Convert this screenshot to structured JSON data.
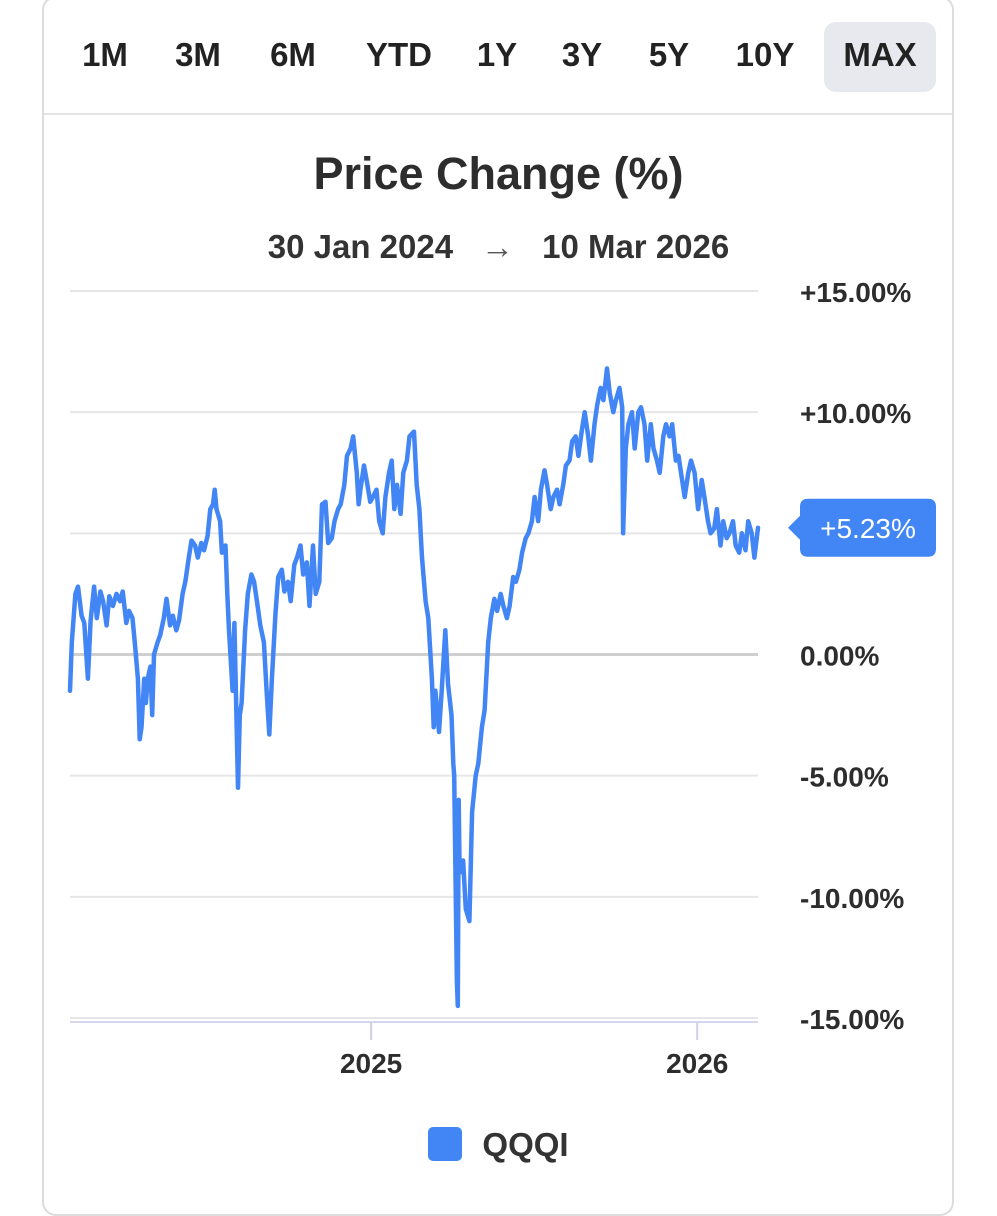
{
  "range_selector": {
    "buttons": [
      {
        "label": "1M"
      },
      {
        "label": "3M"
      },
      {
        "label": "6M"
      },
      {
        "label": "YTD"
      },
      {
        "label": "1Y"
      },
      {
        "label": "3Y"
      },
      {
        "label": "5Y"
      },
      {
        "label": "10Y"
      },
      {
        "label": "MAX"
      }
    ],
    "selected": "MAX"
  },
  "header": {
    "title": "Price Change (%)",
    "start_date": "30 Jan 2024",
    "end_date": "10 Mar 2026",
    "arrow": "→"
  },
  "chart_data": {
    "type": "line",
    "title": "Price Change (%)",
    "xlabel": "",
    "ylabel": "",
    "x_range": [
      "2024-01-30",
      "2026-03-10"
    ],
    "ylim": [
      -15,
      15
    ],
    "y_ticks": [
      15,
      10,
      5,
      0,
      -5,
      -10,
      -15
    ],
    "y_tick_labels": [
      "+15.00%",
      "+10.00%",
      "",
      "0.00%",
      "-5.00%",
      "-10.00%",
      "-15.00%"
    ],
    "x_ticks": [
      {
        "x": "2025-01-01",
        "label": "2025"
      },
      {
        "x": "2026-01-01",
        "label": "2026"
      }
    ],
    "grid": true,
    "legend_position": "bottom",
    "current_value_label": "+5.23%",
    "series": [
      {
        "name": "QQQI",
        "color": "#4285f4",
        "points": [
          [
            "2024-01-30",
            -1.5
          ],
          [
            "2024-02-01",
            0.5
          ],
          [
            "2024-02-05",
            2.5
          ],
          [
            "2024-02-08",
            2.8
          ],
          [
            "2024-02-12",
            1.6
          ],
          [
            "2024-02-15",
            1.3
          ],
          [
            "2024-02-19",
            -1.0
          ],
          [
            "2024-02-22",
            1.4
          ],
          [
            "2024-02-26",
            2.8
          ],
          [
            "2024-02-29",
            1.5
          ],
          [
            "2024-03-04",
            2.6
          ],
          [
            "2024-03-07",
            2.2
          ],
          [
            "2024-03-11",
            1.2
          ],
          [
            "2024-03-14",
            2.4
          ],
          [
            "2024-03-18",
            2.0
          ],
          [
            "2024-03-22",
            2.5
          ],
          [
            "2024-03-26",
            2.2
          ],
          [
            "2024-03-29",
            2.6
          ],
          [
            "2024-04-02",
            1.3
          ],
          [
            "2024-04-05",
            1.8
          ],
          [
            "2024-04-09",
            1.5
          ],
          [
            "2024-04-12",
            0.3
          ],
          [
            "2024-04-15",
            -1.0
          ],
          [
            "2024-04-17",
            -3.5
          ],
          [
            "2024-04-19",
            -3.0
          ],
          [
            "2024-04-22",
            -1.0
          ],
          [
            "2024-04-24",
            -2.0
          ],
          [
            "2024-04-26",
            -1.0
          ],
          [
            "2024-04-29",
            -0.5
          ],
          [
            "2024-05-01",
            -2.5
          ],
          [
            "2024-05-03",
            0.0
          ],
          [
            "2024-05-07",
            0.5
          ],
          [
            "2024-05-10",
            0.8
          ],
          [
            "2024-05-14",
            1.5
          ],
          [
            "2024-05-17",
            2.3
          ],
          [
            "2024-05-21",
            1.2
          ],
          [
            "2024-05-24",
            1.6
          ],
          [
            "2024-05-28",
            1.0
          ],
          [
            "2024-05-31",
            1.4
          ],
          [
            "2024-06-04",
            2.5
          ],
          [
            "2024-06-07",
            3.0
          ],
          [
            "2024-06-11",
            4.0
          ],
          [
            "2024-06-14",
            4.7
          ],
          [
            "2024-06-18",
            4.5
          ],
          [
            "2024-06-21",
            4.0
          ],
          [
            "2024-06-25",
            4.6
          ],
          [
            "2024-06-28",
            4.3
          ],
          [
            "2024-07-02",
            4.9
          ],
          [
            "2024-07-05",
            6.0
          ],
          [
            "2024-07-08",
            6.2
          ],
          [
            "2024-07-10",
            6.8
          ],
          [
            "2024-07-12",
            6.0
          ],
          [
            "2024-07-16",
            5.5
          ],
          [
            "2024-07-18",
            4.2
          ],
          [
            "2024-07-22",
            4.5
          ],
          [
            "2024-07-24",
            2.5
          ],
          [
            "2024-07-26",
            1.0
          ],
          [
            "2024-07-30",
            -1.5
          ],
          [
            "2024-08-01",
            1.3
          ],
          [
            "2024-08-05",
            -5.5
          ],
          [
            "2024-08-07",
            -2.5
          ],
          [
            "2024-08-09",
            -2.0
          ],
          [
            "2024-08-13",
            1.0
          ],
          [
            "2024-08-16",
            2.5
          ],
          [
            "2024-08-20",
            3.3
          ],
          [
            "2024-08-23",
            3.0
          ],
          [
            "2024-08-27",
            2.0
          ],
          [
            "2024-08-30",
            1.2
          ],
          [
            "2024-09-03",
            0.5
          ],
          [
            "2024-09-06",
            -1.5
          ],
          [
            "2024-09-09",
            -3.3
          ],
          [
            "2024-09-12",
            -1.0
          ],
          [
            "2024-09-16",
            1.7
          ],
          [
            "2024-09-19",
            3.2
          ],
          [
            "2024-09-23",
            3.5
          ],
          [
            "2024-09-26",
            2.6
          ],
          [
            "2024-09-30",
            3.0
          ],
          [
            "2024-10-03",
            2.2
          ],
          [
            "2024-10-07",
            3.7
          ],
          [
            "2024-10-10",
            4.0
          ],
          [
            "2024-10-14",
            4.5
          ],
          [
            "2024-10-17",
            3.3
          ],
          [
            "2024-10-21",
            3.8
          ],
          [
            "2024-10-24",
            2.0
          ],
          [
            "2024-10-28",
            4.5
          ],
          [
            "2024-10-31",
            2.5
          ],
          [
            "2024-11-04",
            3.0
          ],
          [
            "2024-11-07",
            6.2
          ],
          [
            "2024-11-11",
            6.3
          ],
          [
            "2024-11-14",
            4.6
          ],
          [
            "2024-11-18",
            4.8
          ],
          [
            "2024-11-21",
            5.5
          ],
          [
            "2024-11-25",
            6.0
          ],
          [
            "2024-11-28",
            6.2
          ],
          [
            "2024-12-02",
            7.0
          ],
          [
            "2024-12-05",
            8.2
          ],
          [
            "2024-12-09",
            8.5
          ],
          [
            "2024-12-12",
            9.0
          ],
          [
            "2024-12-16",
            7.5
          ],
          [
            "2024-12-18",
            6.2
          ],
          [
            "2024-12-20",
            6.8
          ],
          [
            "2024-12-24",
            7.8
          ],
          [
            "2024-12-27",
            7.2
          ],
          [
            "2024-12-31",
            6.3
          ],
          [
            "2025-01-03",
            6.5
          ],
          [
            "2025-01-07",
            6.8
          ],
          [
            "2025-01-10",
            5.5
          ],
          [
            "2025-01-14",
            5.0
          ],
          [
            "2025-01-17",
            6.5
          ],
          [
            "2025-01-21",
            7.5
          ],
          [
            "2025-01-24",
            8.0
          ],
          [
            "2025-01-27",
            6.0
          ],
          [
            "2025-01-30",
            7.0
          ],
          [
            "2025-02-03",
            5.8
          ],
          [
            "2025-02-06",
            7.5
          ],
          [
            "2025-02-10",
            8.0
          ],
          [
            "2025-02-13",
            9.0
          ],
          [
            "2025-02-18",
            9.2
          ],
          [
            "2025-02-21",
            7.0
          ],
          [
            "2025-02-24",
            6.0
          ],
          [
            "2025-02-27",
            4.0
          ],
          [
            "2025-03-03",
            2.2
          ],
          [
            "2025-03-06",
            1.5
          ],
          [
            "2025-03-10",
            -1.0
          ],
          [
            "2025-03-12",
            -3.0
          ],
          [
            "2025-03-14",
            -1.5
          ],
          [
            "2025-03-18",
            -3.2
          ],
          [
            "2025-03-21",
            -1.5
          ],
          [
            "2025-03-25",
            1.0
          ],
          [
            "2025-03-28",
            -1.2
          ],
          [
            "2025-04-01",
            -2.5
          ],
          [
            "2025-04-03",
            -4.5
          ],
          [
            "2025-04-04",
            -5.0
          ],
          [
            "2025-04-07",
            -13.5
          ],
          [
            "2025-04-08",
            -14.5
          ],
          [
            "2025-04-09",
            -6.0
          ],
          [
            "2025-04-10",
            -9.0
          ],
          [
            "2025-04-14",
            -8.5
          ],
          [
            "2025-04-17",
            -10.5
          ],
          [
            "2025-04-21",
            -11.0
          ],
          [
            "2025-04-24",
            -6.5
          ],
          [
            "2025-04-28",
            -5.0
          ],
          [
            "2025-05-01",
            -4.5
          ],
          [
            "2025-05-05",
            -3.0
          ],
          [
            "2025-05-08",
            -2.3
          ],
          [
            "2025-05-12",
            0.5
          ],
          [
            "2025-05-15",
            1.5
          ],
          [
            "2025-05-19",
            2.3
          ],
          [
            "2025-05-22",
            1.8
          ],
          [
            "2025-05-26",
            2.5
          ],
          [
            "2025-05-29",
            2.0
          ],
          [
            "2025-06-02",
            1.5
          ],
          [
            "2025-06-05",
            2.0
          ],
          [
            "2025-06-09",
            3.2
          ],
          [
            "2025-06-12",
            3.0
          ],
          [
            "2025-06-16",
            3.5
          ],
          [
            "2025-06-19",
            4.2
          ],
          [
            "2025-06-23",
            4.8
          ],
          [
            "2025-06-26",
            5.0
          ],
          [
            "2025-06-30",
            5.5
          ],
          [
            "2025-07-03",
            6.5
          ],
          [
            "2025-07-07",
            5.5
          ],
          [
            "2025-07-10",
            6.8
          ],
          [
            "2025-07-14",
            7.6
          ],
          [
            "2025-07-17",
            7.0
          ],
          [
            "2025-07-21",
            6.0
          ],
          [
            "2025-07-24",
            6.5
          ],
          [
            "2025-07-28",
            6.8
          ],
          [
            "2025-07-31",
            6.2
          ],
          [
            "2025-08-04",
            7.0
          ],
          [
            "2025-08-07",
            7.8
          ],
          [
            "2025-08-11",
            8.0
          ],
          [
            "2025-08-14",
            8.8
          ],
          [
            "2025-08-18",
            9.0
          ],
          [
            "2025-08-21",
            8.2
          ],
          [
            "2025-08-25",
            9.3
          ],
          [
            "2025-08-28",
            10.0
          ],
          [
            "2025-09-01",
            9.0
          ],
          [
            "2025-09-04",
            8.0
          ],
          [
            "2025-09-08",
            9.5
          ],
          [
            "2025-09-11",
            10.3
          ],
          [
            "2025-09-15",
            11.0
          ],
          [
            "2025-09-18",
            10.5
          ],
          [
            "2025-09-22",
            11.8
          ],
          [
            "2025-09-25",
            10.8
          ],
          [
            "2025-09-29",
            10.0
          ],
          [
            "2025-10-02",
            10.5
          ],
          [
            "2025-10-06",
            11.0
          ],
          [
            "2025-10-09",
            10.2
          ],
          [
            "2025-10-10",
            5.0
          ],
          [
            "2025-10-13",
            8.5
          ],
          [
            "2025-10-16",
            9.5
          ],
          [
            "2025-10-20",
            10.0
          ],
          [
            "2025-10-23",
            8.5
          ],
          [
            "2025-10-27",
            10.0
          ],
          [
            "2025-10-30",
            10.2
          ],
          [
            "2025-11-03",
            9.5
          ],
          [
            "2025-11-06",
            8.0
          ],
          [
            "2025-11-10",
            9.5
          ],
          [
            "2025-11-13",
            8.5
          ],
          [
            "2025-11-17",
            8.0
          ],
          [
            "2025-11-20",
            7.5
          ],
          [
            "2025-11-24",
            9.0
          ],
          [
            "2025-11-27",
            9.5
          ],
          [
            "2025-12-01",
            9.0
          ],
          [
            "2025-12-04",
            9.5
          ],
          [
            "2025-12-08",
            8.0
          ],
          [
            "2025-12-11",
            8.2
          ],
          [
            "2025-12-15",
            7.2
          ],
          [
            "2025-12-18",
            6.5
          ],
          [
            "2025-12-22",
            7.5
          ],
          [
            "2025-12-25",
            8.0
          ],
          [
            "2025-12-29",
            7.5
          ],
          [
            "2026-01-02",
            6.0
          ],
          [
            "2026-01-06",
            7.2
          ],
          [
            "2026-01-09",
            6.5
          ],
          [
            "2026-01-13",
            5.5
          ],
          [
            "2026-01-16",
            5.0
          ],
          [
            "2026-01-20",
            5.2
          ],
          [
            "2026-01-23",
            6.0
          ],
          [
            "2026-01-27",
            4.5
          ],
          [
            "2026-01-30",
            5.5
          ],
          [
            "2026-02-03",
            4.8
          ],
          [
            "2026-02-06",
            5.0
          ],
          [
            "2026-02-10",
            5.5
          ],
          [
            "2026-02-13",
            4.5
          ],
          [
            "2026-02-17",
            4.2
          ],
          [
            "2026-02-20",
            5.0
          ],
          [
            "2026-02-24",
            4.3
          ],
          [
            "2026-02-27",
            5.5
          ],
          [
            "2026-03-03",
            5.0
          ],
          [
            "2026-03-06",
            4.0
          ],
          [
            "2026-03-10",
            5.23
          ]
        ]
      }
    ]
  }
}
